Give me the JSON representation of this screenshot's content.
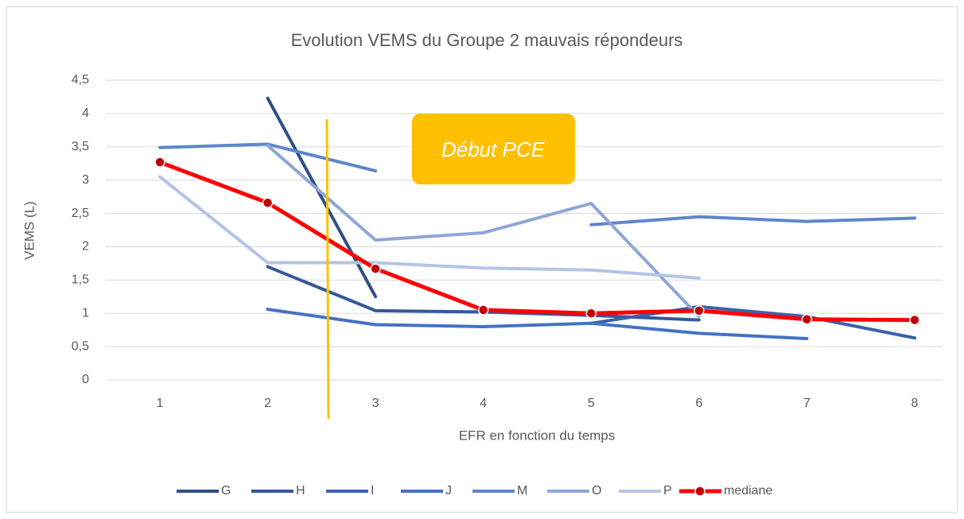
{
  "chart_data": {
    "type": "line",
    "title": "Evolution VEMS du Groupe 2 mauvais répondeurs",
    "x_label": "EFR en fonction du temps",
    "y_label": "VEMS (L)",
    "annotation": "Début PCE",
    "categories": [
      "1",
      "2",
      "3",
      "4",
      "5",
      "6",
      "7",
      "8"
    ],
    "ylim": [
      0,
      4.5
    ],
    "yticks": [
      0,
      {
        "value": 0.5,
        "label": "0,5"
      },
      1,
      {
        "value": 1.5,
        "label": "1,5"
      },
      2,
      {
        "value": 2.5,
        "label": "2,5"
      },
      3,
      {
        "value": 3.5,
        "label": "3,5"
      },
      4,
      {
        "value": 4.5,
        "label": "4,5"
      }
    ],
    "grid": true,
    "legend": "bottom",
    "series": [
      {
        "name": "G",
        "color": "#2f4e86",
        "values": [
          null,
          4.23,
          1.25,
          null,
          null,
          null,
          null,
          null
        ]
      },
      {
        "name": "H",
        "color": "#34589a",
        "values": [
          null,
          1.7,
          1.04,
          1.02,
          0.97,
          0.9,
          null,
          null
        ]
      },
      {
        "name": "I",
        "color": "#3a62ad",
        "values": [
          null,
          null,
          null,
          null,
          0.85,
          1.1,
          0.95,
          0.63
        ]
      },
      {
        "name": "J",
        "color": "#4472c4",
        "values": [
          null,
          1.06,
          0.83,
          0.8,
          0.85,
          0.7,
          0.62,
          null
        ]
      },
      {
        "name": "M",
        "color": "#5f86cc",
        "values": [
          3.49,
          3.54,
          3.14,
          null,
          2.33,
          2.45,
          2.38,
          2.43
        ]
      },
      {
        "name": "O",
        "color": "#8ea6d8",
        "values": [
          null,
          3.52,
          2.1,
          2.21,
          2.65,
          0.95,
          null,
          null
        ]
      },
      {
        "name": "P",
        "color": "#b4c3e6",
        "values": [
          3.05,
          1.76,
          1.76,
          1.68,
          1.65,
          1.53,
          null,
          null
        ]
      },
      {
        "name": "mediane",
        "color": "#ff0000",
        "marker_color": "#c00000",
        "values": [
          3.27,
          2.66,
          1.67,
          1.05,
          1.0,
          1.04,
          0.91,
          0.9
        ]
      }
    ]
  }
}
